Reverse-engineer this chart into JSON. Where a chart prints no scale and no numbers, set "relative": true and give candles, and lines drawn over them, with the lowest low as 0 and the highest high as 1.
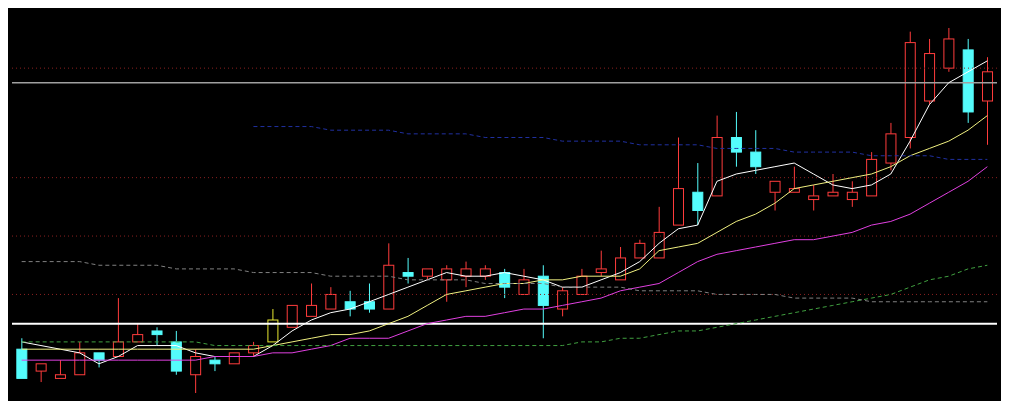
{
  "chart_data": {
    "type": "candlestick",
    "relative": true,
    "tick_labels": false,
    "categories": [
      null,
      null,
      null,
      null,
      null,
      null,
      null,
      null,
      null,
      null,
      null,
      null,
      null,
      null,
      null,
      null,
      null,
      null,
      null,
      null,
      null,
      null,
      null,
      null,
      null,
      null,
      null,
      null,
      null,
      null,
      null,
      null,
      null,
      null,
      null,
      null,
      null,
      null,
      null,
      null,
      null,
      null,
      null,
      null,
      null,
      null,
      null,
      null,
      null,
      null,
      null
    ],
    "ohlc": [
      [
        0.12,
        0.15,
        0.04,
        0.04
      ],
      [
        0.06,
        0.08,
        0.03,
        0.08
      ],
      [
        0.04,
        0.09,
        0.04,
        0.05
      ],
      [
        0.05,
        0.14,
        0.05,
        0.11
      ],
      [
        0.11,
        0.11,
        0.07,
        0.09
      ],
      [
        0.1,
        0.26,
        0.1,
        0.14
      ],
      [
        0.14,
        0.19,
        0.14,
        0.16
      ],
      [
        0.17,
        0.18,
        0.13,
        0.16
      ],
      [
        0.14,
        0.17,
        0.05,
        0.06
      ],
      [
        0.05,
        0.12,
        0,
        0.1
      ],
      [
        0.09,
        0.1,
        0.06,
        0.08
      ],
      [
        0.08,
        0.11,
        0.08,
        0.11
      ],
      [
        0.11,
        0.14,
        0.1,
        0.13
      ],
      [
        0.14,
        0.23,
        0.14,
        0.2
      ],
      [
        0.18,
        0.24,
        0.18,
        0.24
      ],
      [
        0.21,
        0.3,
        0.21,
        0.24
      ],
      [
        0.23,
        0.29,
        0.23,
        0.27
      ],
      [
        0.25,
        0.28,
        0.21,
        0.23
      ],
      [
        0.25,
        0.3,
        0.22,
        0.23
      ],
      [
        0.23,
        0.41,
        0.23,
        0.35
      ],
      [
        0.33,
        0.37,
        0.3,
        0.32
      ],
      [
        0.32,
        0.34,
        0.31,
        0.34
      ],
      [
        0.31,
        0.35,
        0.25,
        0.34
      ],
      [
        0.32,
        0.36,
        0.29,
        0.34
      ],
      [
        0.32,
        0.35,
        0.31,
        0.34
      ],
      [
        0.33,
        0.34,
        0.26,
        0.29
      ],
      [
        0.27,
        0.34,
        0.27,
        0.31
      ],
      [
        0.32,
        0.35,
        0.15,
        0.24
      ],
      [
        0.23,
        0.29,
        0.21,
        0.28
      ],
      [
        0.27,
        0.34,
        0.27,
        0.32
      ],
      [
        0.33,
        0.39,
        0.32,
        0.34
      ],
      [
        0.31,
        0.4,
        0.31,
        0.37
      ],
      [
        0.37,
        0.42,
        0.37,
        0.41
      ],
      [
        0.37,
        0.51,
        0.37,
        0.44
      ],
      [
        0.46,
        0.7,
        0.46,
        0.56
      ],
      [
        0.55,
        0.63,
        0.46,
        0.5
      ],
      [
        0.54,
        0.76,
        0.54,
        0.7
      ],
      [
        0.7,
        0.77,
        0.62,
        0.66
      ],
      [
        0.66,
        0.72,
        0.6,
        0.62
      ],
      [
        0.55,
        0.58,
        0.5,
        0.58
      ],
      [
        0.55,
        0.62,
        0.55,
        0.56
      ],
      [
        0.53,
        0.57,
        0.5,
        0.54
      ],
      [
        0.54,
        0.6,
        0.54,
        0.55
      ],
      [
        0.53,
        0.58,
        0.51,
        0.55
      ],
      [
        0.54,
        0.66,
        0.54,
        0.64
      ],
      [
        0.63,
        0.74,
        0.61,
        0.71
      ],
      [
        0.7,
        0.99,
        0.67,
        0.96
      ],
      [
        0.8,
        0.97,
        0.79,
        0.93
      ],
      [
        0.89,
        1,
        0.88,
        0.97
      ],
      [
        0.94,
        0.97,
        0.74,
        0.77
      ],
      [
        0.8,
        0.92,
        0.68,
        0.88
      ]
    ],
    "colors": [
      "#54fcfc",
      "#ff3c3c",
      "#ff3c3c",
      "#ff3c3c",
      "#54fcfc",
      "#ff3c3c",
      "#ff3c3c",
      "#54fcfc",
      "#54fcfc",
      "#ff3c3c",
      "#54fcfc",
      "#ff3c3c",
      "#ff3c3c",
      "#e8e830",
      "#ff3c3c",
      "#ff3c3c",
      "#ff3c3c",
      "#54fcfc",
      "#54fcfc",
      "#ff3c3c",
      "#54fcfc",
      "#ff3c3c",
      "#ff3c3c",
      "#ff3c3c",
      "#ff3c3c",
      "#54fcfc",
      "#ff3c3c",
      "#54fcfc",
      "#ff3c3c",
      "#ff3c3c",
      "#ff3c3c",
      "#ff3c3c",
      "#ff3c3c",
      "#ff3c3c",
      "#ff3c3c",
      "#54fcfc",
      "#ff3c3c",
      "#54fcfc",
      "#54fcfc",
      "#ff3c3c",
      "#ff3c3c",
      "#ff3c3c",
      "#ff3c3c",
      "#ff3c3c",
      "#ff3c3c",
      "#ff3c3c",
      "#ff3c3c",
      "#ff3c3c",
      "#ff3c3c",
      "#54fcfc",
      "#ff3c3c"
    ],
    "series": [
      {
        "type": "line",
        "color": "#ffffff",
        "values": [
          0.14,
          0.13,
          0.12,
          0.11,
          0.08,
          0.1,
          0.13,
          0.13,
          0.13,
          0.11,
          0.1,
          0.1,
          0.1,
          0.13,
          0.17,
          0.2,
          0.22,
          0.23,
          0.25,
          0.27,
          0.29,
          0.31,
          0.33,
          0.32,
          0.32,
          0.33,
          0.32,
          0.31,
          0.29,
          0.29,
          0.31,
          0.33,
          0.36,
          0.41,
          0.45,
          0.46,
          0.58,
          0.6,
          0.61,
          0.62,
          0.63,
          0.6,
          0.57,
          0.56,
          0.57,
          0.6,
          0.69,
          0.79,
          0.85,
          0.88,
          0.91
        ]
      },
      {
        "type": "line",
        "color": "#f0f080",
        "values": [
          0.12,
          0.12,
          0.12,
          0.12,
          0.12,
          0.12,
          0.12,
          0.12,
          0.12,
          0.12,
          0.12,
          0.12,
          0.12,
          0.13,
          0.14,
          0.15,
          0.16,
          0.16,
          0.17,
          0.19,
          0.21,
          0.24,
          0.27,
          0.28,
          0.29,
          0.3,
          0.3,
          0.31,
          0.31,
          0.32,
          0.32,
          0.32,
          0.34,
          0.39,
          0.4,
          0.41,
          0.44,
          0.47,
          0.49,
          0.52,
          0.56,
          0.57,
          0.58,
          0.59,
          0.6,
          0.62,
          0.65,
          0.67,
          0.69,
          0.72,
          0.76
        ]
      },
      {
        "type": "line",
        "color": "#e040e0",
        "values": [
          0.09,
          0.09,
          0.09,
          0.09,
          0.09,
          0.09,
          0.09,
          0.09,
          0.09,
          0.09,
          0.1,
          0.1,
          0.1,
          0.11,
          0.11,
          0.12,
          0.13,
          0.15,
          0.15,
          0.15,
          0.17,
          0.19,
          0.2,
          0.21,
          0.21,
          0.22,
          0.23,
          0.23,
          0.24,
          0.25,
          0.26,
          0.28,
          0.29,
          0.3,
          0.33,
          0.36,
          0.38,
          0.39,
          0.4,
          0.41,
          0.42,
          0.42,
          0.43,
          0.44,
          0.46,
          0.47,
          0.49,
          0.52,
          0.55,
          0.58,
          0.62
        ]
      },
      {
        "type": "line",
        "color": "#40a040",
        "line_style": "dashed",
        "values": [
          0.14,
          0.14,
          0.14,
          0.14,
          0.14,
          0.14,
          0.14,
          0.14,
          0.14,
          0.14,
          0.13,
          0.13,
          0.13,
          0.13,
          0.13,
          0.13,
          0.13,
          0.13,
          0.13,
          0.13,
          0.13,
          0.13,
          0.13,
          0.13,
          0.13,
          0.13,
          0.13,
          0.13,
          0.13,
          0.14,
          0.14,
          0.15,
          0.15,
          0.16,
          0.17,
          0.17,
          0.18,
          0.19,
          0.2,
          0.21,
          0.22,
          0.23,
          0.24,
          0.25,
          0.26,
          0.27,
          0.29,
          0.31,
          0.32,
          0.34,
          0.35
        ]
      },
      {
        "type": "line",
        "color": "#808080",
        "line_style": "dashed",
        "values": [
          0.36,
          0.36,
          0.36,
          0.36,
          0.35,
          0.35,
          0.35,
          0.35,
          0.34,
          0.34,
          0.34,
          0.34,
          0.33,
          0.33,
          0.33,
          0.33,
          0.32,
          0.32,
          0.32,
          0.32,
          0.31,
          0.31,
          0.31,
          0.31,
          0.3,
          0.3,
          0.3,
          0.3,
          0.29,
          0.29,
          0.29,
          0.29,
          0.28,
          0.28,
          0.28,
          0.28,
          0.27,
          0.27,
          0.27,
          0.27,
          0.26,
          0.26,
          0.26,
          0.26,
          0.25,
          0.25,
          0.25,
          0.25,
          0.25,
          0.25,
          0.25
        ]
      },
      {
        "type": "line",
        "color": "#2030a0",
        "line_style": "dashed",
        "values": [
          null,
          null,
          null,
          null,
          null,
          null,
          null,
          null,
          null,
          null,
          null,
          null,
          0.73,
          0.73,
          0.73,
          0.73,
          0.72,
          0.72,
          0.72,
          0.72,
          0.71,
          0.71,
          0.71,
          0.71,
          0.7,
          0.7,
          0.7,
          0.7,
          0.69,
          0.69,
          0.69,
          0.69,
          0.68,
          0.68,
          0.68,
          0.68,
          0.67,
          0.67,
          0.67,
          0.67,
          0.66,
          0.66,
          0.66,
          0.66,
          0.65,
          0.65,
          0.65,
          0.65,
          0.64,
          0.64,
          0.64
        ]
      }
    ],
    "ref_lines": [
      {
        "axis": "y",
        "value": 0.19,
        "color": "#ffffff"
      },
      {
        "axis": "y",
        "value": 0.85,
        "color": "#a0a0a0"
      },
      {
        "axis": "y",
        "value": 0.89,
        "color": "#8a2020",
        "line_style": "dotted"
      },
      {
        "axis": "y",
        "value": 0.59,
        "color": "#8a2020",
        "line_style": "dotted"
      },
      {
        "axis": "y",
        "value": 0.43,
        "color": "#8a2020",
        "line_style": "dotted"
      },
      {
        "axis": "y",
        "value": 0.27,
        "color": "#8a2020",
        "line_style": "dotted"
      }
    ]
  }
}
